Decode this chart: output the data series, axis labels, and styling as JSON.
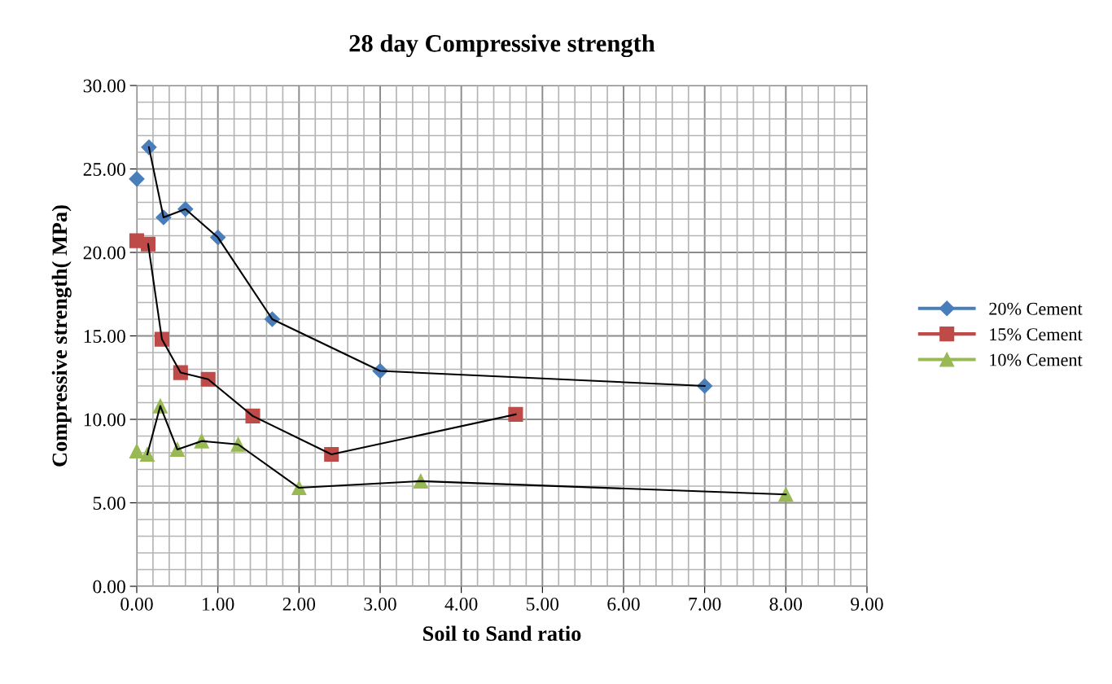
{
  "chart_data": {
    "type": "scatter",
    "title": "28 day Compressive strength",
    "xlabel": "Soil to Sand ratio",
    "ylabel": "Compressive strength( MPa)",
    "xlim": [
      0,
      9
    ],
    "xticks": [
      {
        "value": 0,
        "label": "0.00"
      },
      {
        "value": 1,
        "label": "1.00"
      },
      {
        "value": 2,
        "label": "2.00"
      },
      {
        "value": 3,
        "label": "3.00"
      },
      {
        "value": 4,
        "label": "4.00"
      },
      {
        "value": 5,
        "label": "5.00"
      },
      {
        "value": 6,
        "label": "6.00"
      },
      {
        "value": 7,
        "label": "7.00"
      },
      {
        "value": 8,
        "label": "8.00"
      },
      {
        "value": 9,
        "label": "9.00"
      }
    ],
    "ylim": [
      0,
      30
    ],
    "yticks": [
      {
        "value": 0,
        "label": "0.00"
      },
      {
        "value": 5,
        "label": "5.00"
      },
      {
        "value": 10,
        "label": "10.00"
      },
      {
        "value": 15,
        "label": "15.00"
      },
      {
        "value": 20,
        "label": "20.00"
      },
      {
        "value": 25,
        "label": "25.00"
      },
      {
        "value": 30,
        "label": "30.00"
      }
    ],
    "grid": true,
    "legend": "right",
    "series": [
      {
        "name": "20% Cement",
        "color": "#4a7ebb",
        "marker": "diamond",
        "x": [
          0,
          0.15,
          0.33,
          0.6,
          1.0,
          1.67,
          3.0,
          7.0
        ],
        "values": [
          24.4,
          26.3,
          22.1,
          22.6,
          20.9,
          16.0,
          12.9,
          12.0
        ]
      },
      {
        "name": "15% Cement",
        "color": "#be4b48",
        "marker": "square",
        "x": [
          0,
          0.14,
          0.31,
          0.54,
          0.88,
          1.43,
          2.4,
          4.67
        ],
        "values": [
          20.7,
          20.5,
          14.8,
          12.8,
          12.4,
          10.2,
          7.9,
          10.3
        ]
      },
      {
        "name": "10% Cement",
        "color": "#98b954",
        "marker": "triangle",
        "x": [
          0,
          0.13,
          0.29,
          0.5,
          0.8,
          1.25,
          2.0,
          3.5,
          8.0
        ],
        "values": [
          8.1,
          7.9,
          10.8,
          8.2,
          8.7,
          8.5,
          5.9,
          6.3,
          5.5
        ]
      },
      {
        "type": "line",
        "color": "#000000",
        "marker": "none",
        "x": [
          0.15,
          0.33,
          0.6,
          1.0,
          1.67,
          3.0,
          7.0
        ],
        "values": [
          26.3,
          22.1,
          22.6,
          20.9,
          16.0,
          12.9,
          12.0
        ]
      },
      {
        "type": "line",
        "color": "#000000",
        "marker": "none",
        "x": [
          0.14,
          0.31,
          0.54,
          0.88,
          1.43,
          2.4,
          4.67
        ],
        "values": [
          20.5,
          14.8,
          12.8,
          12.4,
          10.2,
          7.9,
          10.3
        ]
      },
      {
        "type": "line",
        "color": "#000000",
        "marker": "none",
        "x": [
          0.13,
          0.29,
          0.5,
          0.8,
          1.25,
          2.0,
          3.5,
          8.0
        ],
        "values": [
          7.9,
          10.8,
          8.2,
          8.7,
          8.5,
          5.9,
          6.3,
          5.5
        ]
      }
    ]
  }
}
